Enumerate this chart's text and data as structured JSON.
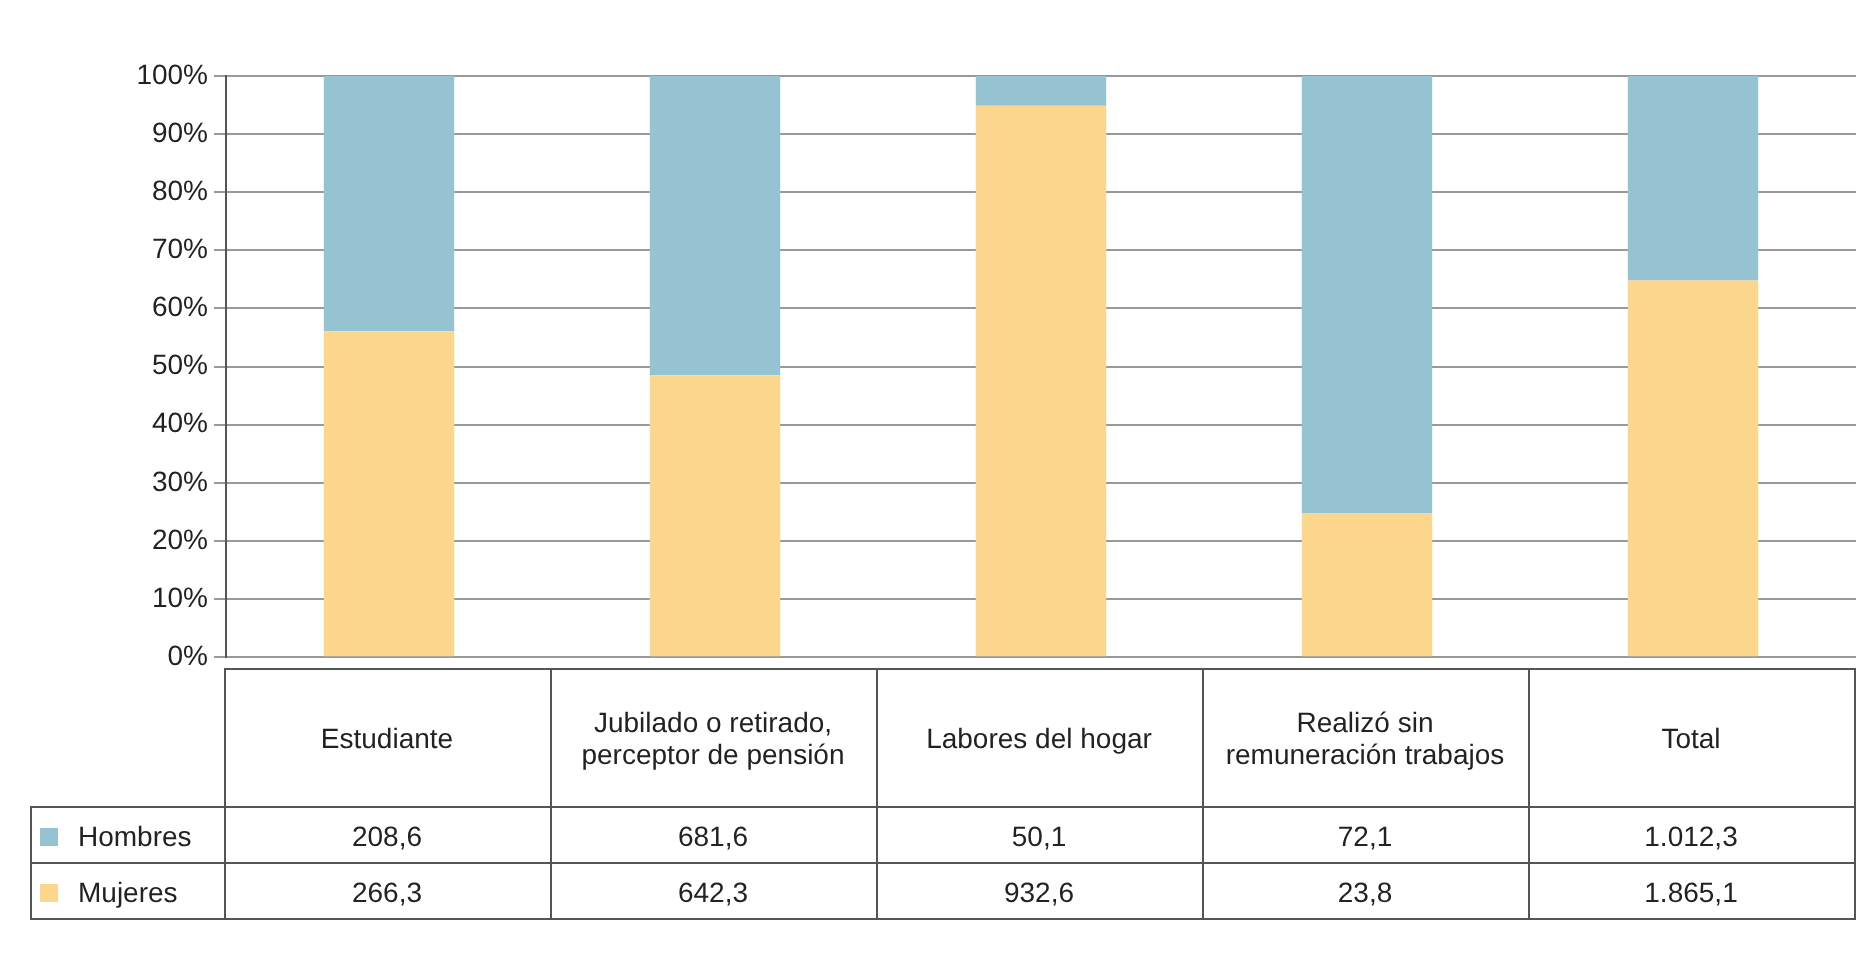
{
  "chart_data": {
    "type": "bar",
    "stacked": true,
    "categories": [
      "Estudiante",
      "Jubilado o retirado, perceptor de pensión",
      "Labores del hogar",
      "Realizó sin remuneración trabajos",
      "Total"
    ],
    "series": [
      {
        "name": "Mujeres",
        "color": "#fcd68d",
        "values": [
          56.1,
          48.5,
          94.9,
          24.8,
          64.8
        ]
      },
      {
        "name": "Hombres",
        "color": "#96c3d1",
        "values": [
          43.9,
          51.5,
          5.1,
          75.2,
          35.2
        ]
      }
    ],
    "annotations": [
      "208,6",
      "681,6",
      "50,1",
      "72,1",
      "1.012,3",
      "266,3",
      "642,3",
      "932,6",
      "23,8",
      "1.865,1"
    ],
    "ylim": [
      0,
      100
    ],
    "yticks": [
      {
        "value": 0,
        "label": "0%"
      },
      {
        "value": 10,
        "label": "10%"
      },
      {
        "value": 20,
        "label": "20%"
      },
      {
        "value": 30,
        "label": "30%"
      },
      {
        "value": 40,
        "label": "40%"
      },
      {
        "value": 50,
        "label": "50%"
      },
      {
        "value": 60,
        "label": "60%"
      },
      {
        "value": 70,
        "label": "70%"
      },
      {
        "value": 80,
        "label": "80%"
      },
      {
        "value": 90,
        "label": "90%"
      },
      {
        "value": 100,
        "label": "100%"
      }
    ],
    "grid": "y",
    "legend": "bottom"
  }
}
